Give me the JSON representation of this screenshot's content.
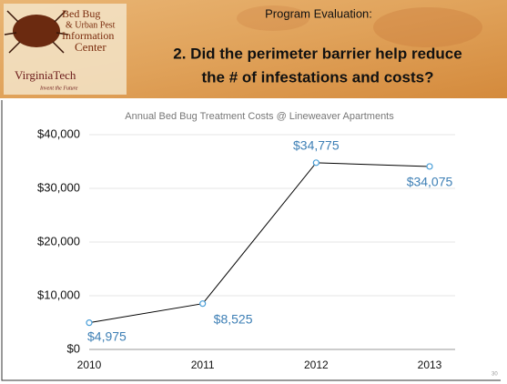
{
  "slide": {
    "logo": {
      "line1": "Bed Bug",
      "line2": "& Urban Pest",
      "line3": "Information",
      "line4": "Center",
      "school": "VirginiaTech",
      "motto": "Invent the Future"
    },
    "kicker": "Program Evaluation:",
    "title_line1": "2. Did the perimeter barrier help reduce",
    "title_line2": "the # of infestations and costs?",
    "page_number": "30"
  },
  "chart_data": {
    "type": "line",
    "title": "Annual Bed Bug Treatment Costs @ Lineweaver Apartments",
    "x": [
      2010,
      2011,
      2012,
      2013
    ],
    "values": [
      4975,
      8525,
      34775,
      34075
    ],
    "value_labels": [
      "$4,975",
      "$8,525",
      "$34,775",
      "$34,075"
    ],
    "color": "#000000",
    "marker_color": "#4a9fd8",
    "label_color": "#3d7fb5",
    "xlim": [
      2010,
      2013
    ],
    "xticks": [
      2010,
      2011,
      2012,
      2013
    ],
    "ylim": [
      0,
      40000
    ],
    "yticks": [
      {
        "value": 0,
        "label": "$0"
      },
      {
        "value": 10000,
        "label": "$10,000"
      },
      {
        "value": 20000,
        "label": "$20,000"
      },
      {
        "value": 30000,
        "label": "$30,000"
      },
      {
        "value": 40000,
        "label": "$40,000"
      }
    ],
    "grid": true
  }
}
